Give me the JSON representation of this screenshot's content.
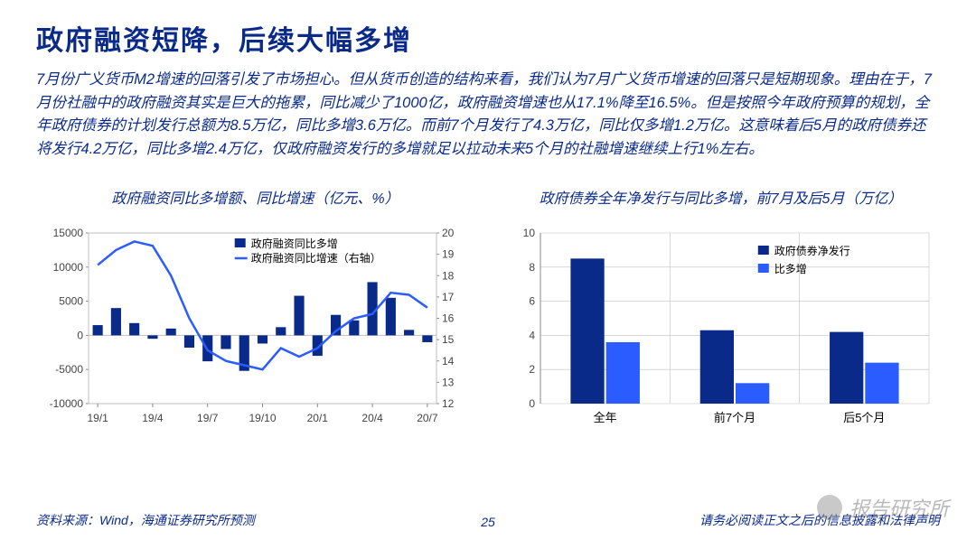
{
  "colors": {
    "primary": "#0a2a8a",
    "series_dark": "#0a2a8a",
    "series_light": "#2a5cff",
    "axis": "#888888",
    "grid": "#bfbfbf",
    "tick_text": "#444444",
    "background": "#ffffff"
  },
  "header": {
    "title": "政府融资短降，后续大幅多增"
  },
  "paragraph": "7月份广义货币M2增速的回落引发了市场担心。但从货币创造的结构来看，我们认为7月广义货币增速的回落只是短期现象。理由在于，7月份社融中的政府融资其实是巨大的拖累，同比减少了1000亿，政府融资增速也从17.1%降至16.5%。但是按照今年政府预算的规划，全年政府债券的计划发行总额为8.5万亿，同比多增3.6万亿。而前7个月发行了4.3万亿，同比仅多增1.2万亿。这意味着后5月的政府债券还将发行4.2万亿，同比多增2.4万亿，仅政府融资发行的多增就足以拉动未来5个月的社融增速继续上行1%左右。",
  "chart_left": {
    "title": "政府融资同比多增额、同比增速（亿元、%）",
    "type": "bar+line dual-axis",
    "x_labels": [
      "19/1",
      "19/4",
      "19/7",
      "19/10",
      "20/1",
      "20/4",
      "20/7"
    ],
    "left_axis": {
      "ticks": [
        -10000,
        -5000,
        0,
        5000,
        10000,
        15000
      ],
      "min": -10000,
      "max": 15000
    },
    "right_axis": {
      "ticks": [
        12,
        13,
        14,
        15,
        16,
        17,
        18,
        19,
        20
      ],
      "min": 12,
      "max": 20
    },
    "legend": {
      "bar": "政府融资同比多增",
      "line": "政府融资同比增速（右轴）"
    },
    "bars": [
      1500,
      4000,
      1800,
      -500,
      1000,
      -1800,
      -3800,
      -2000,
      -5200,
      -1200,
      1200,
      5800,
      -3000,
      3000,
      2200,
      7800,
      5500,
      800,
      -1000
    ],
    "line": [
      18.5,
      19.2,
      19.6,
      19.4,
      18.0,
      16.0,
      14.5,
      14.0,
      13.8,
      13.6,
      14.6,
      14.2,
      14.6,
      15.4,
      16.0,
      16.2,
      17.2,
      17.1,
      16.5
    ],
    "bar_color": "#0a2a8a",
    "line_color": "#2a5cff",
    "font_size_axis": 12
  },
  "chart_right": {
    "title": "政府债券全年净发行与同比多增，前7月及后5月（万亿）",
    "type": "grouped-bar",
    "categories": [
      "全年",
      "前7个月",
      "后5个月"
    ],
    "series": [
      {
        "name": "政府债券净发行",
        "color": "#0a2a8a",
        "values": [
          8.5,
          4.3,
          4.2
        ]
      },
      {
        "name": "比多增",
        "color": "#2a5cff",
        "values": [
          3.6,
          1.2,
          2.4
        ]
      }
    ],
    "y_axis": {
      "ticks": [
        0,
        2,
        4,
        6,
        8,
        10
      ],
      "min": 0,
      "max": 10
    },
    "font_size_axis": 12
  },
  "footer": {
    "source": "资料来源：Wind，海通证券研究所预测",
    "page": "25",
    "disclaimer": "请务必阅读正文之后的信息披露和法律声明"
  },
  "watermark": "报告研究所"
}
